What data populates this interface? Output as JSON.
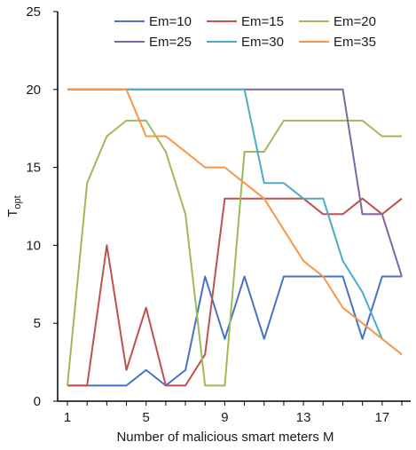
{
  "chart_data": {
    "type": "line",
    "title": "",
    "xlabel": "Number of malicious smart meters M",
    "ylabel_main": "T",
    "ylabel_sub": "opt",
    "x": [
      1,
      2,
      3,
      4,
      5,
      6,
      7,
      8,
      9,
      10,
      11,
      12,
      13,
      14,
      15,
      16,
      17,
      18
    ],
    "xticks": [
      1,
      5,
      9,
      13,
      17
    ],
    "yticks": [
      0,
      5,
      10,
      15,
      20,
      25
    ],
    "xlim": [
      1,
      18
    ],
    "ylim": [
      0,
      25
    ],
    "grid": false,
    "legend_position": "top",
    "series": [
      {
        "name": "Em=10",
        "color": "#4472c4",
        "values": [
          1,
          1,
          1,
          1,
          2,
          1,
          2,
          8,
          4,
          8,
          4,
          8,
          8,
          8,
          8,
          4,
          8,
          8
        ]
      },
      {
        "name": "Em=15",
        "color": "#c0504d",
        "values": [
          1,
          1,
          10,
          2,
          6,
          1,
          1,
          3,
          13,
          13,
          13,
          13,
          13,
          12,
          12,
          13,
          12,
          13
        ]
      },
      {
        "name": "Em=20",
        "color": "#9bbb59",
        "values": [
          1,
          14,
          17,
          18,
          18,
          16,
          12,
          1,
          1,
          16,
          16,
          18,
          18,
          18,
          18,
          18,
          17,
          17
        ]
      },
      {
        "name": "Em=25",
        "color": "#8064a2",
        "values": [
          20,
          20,
          20,
          20,
          20,
          20,
          20,
          20,
          20,
          20,
          20,
          20,
          20,
          20,
          20,
          12,
          12,
          8
        ]
      },
      {
        "name": "Em=30",
        "color": "#4bacc6",
        "values": [
          20,
          20,
          20,
          20,
          20,
          20,
          20,
          20,
          20,
          20,
          14,
          14,
          13,
          13,
          9,
          7,
          4,
          null
        ]
      },
      {
        "name": "Em=35",
        "color": "#f79646",
        "values": [
          20,
          20,
          20,
          20,
          17,
          17,
          16,
          15,
          15,
          14,
          13,
          11,
          9,
          8,
          6,
          5,
          4,
          3
        ]
      }
    ]
  }
}
